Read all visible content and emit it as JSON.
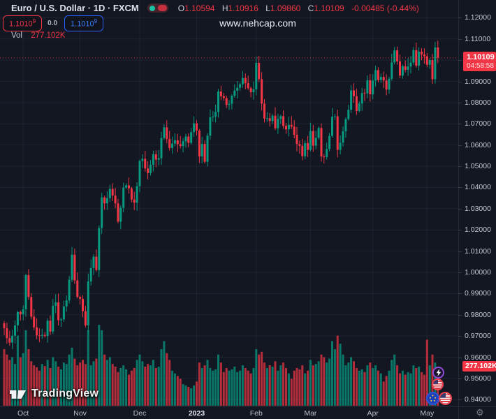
{
  "header": {
    "title": "Euro / U.S. Dollar · 1D · FXCM",
    "ohlc": {
      "o_label": "O",
      "o": "1.10594",
      "h_label": "H",
      "h": "1.10916",
      "l_label": "L",
      "l": "1.09860",
      "c_label": "C",
      "c": "1.10109",
      "change": "-0.00485 (-0.44%)"
    },
    "badges": {
      "bid": {
        "value": "1.1010",
        "sup": "9"
      },
      "spread": "0.0",
      "ask": {
        "value": "1.1010",
        "sup": "9"
      }
    },
    "volume": {
      "label": "Vol",
      "value": "277.102K"
    }
  },
  "watermark": "www.nehcap.com",
  "price_axis": {
    "ticks": [
      "1.12000",
      "1.11000",
      "1.10000",
      "1.09000",
      "1.08000",
      "1.07000",
      "1.06000",
      "1.05000",
      "1.04000",
      "1.03000",
      "1.02000",
      "1.01000",
      "1.00000",
      "0.99000",
      "0.98000",
      "0.97000",
      "0.96000",
      "0.95000",
      "0.94000"
    ],
    "last_price_label": "1.10109",
    "countdown": "04:58:58",
    "volume_badge": "277.102K",
    "gear_icon": "⚙"
  },
  "logo": {
    "text": "TradingView"
  },
  "event_markers": [
    {
      "name": "flash-event-icon"
    },
    {
      "name": "us-flag-event-icon"
    },
    {
      "name": "eu-flag-event-icon"
    },
    {
      "name": "us-flag-event-icon-2"
    }
  ],
  "colors": {
    "background": "#131722",
    "up": "#089981",
    "down": "#f23645",
    "vol_up": "rgba(8,153,129,0.75)",
    "vol_down": "rgba(242,54,69,0.72)",
    "grid": "rgba(163,176,199,0.08)",
    "last_price_line": "#f23645",
    "badge_red": "#f23645",
    "badge_blue": "#2962ff"
  },
  "chart_data": {
    "type": "candlestick+volume",
    "symbol": "Euro / U.S. Dollar",
    "exchange": "FXCM",
    "interval": "1D",
    "ylim": [
      0.94,
      1.12
    ],
    "y_tick_step": 0.01,
    "last_price": 1.10109,
    "last_candle": {
      "o": 1.10594,
      "h": 1.10916,
      "l": 1.0986,
      "c": 1.10109
    },
    "first_open": 0.976,
    "month_ticks": [
      {
        "label": "Oct",
        "index": 7,
        "year": false
      },
      {
        "label": "Nov",
        "index": 28,
        "year": false
      },
      {
        "label": "Dec",
        "index": 50,
        "year": false
      },
      {
        "label": "2023",
        "index": 71,
        "year": true
      },
      {
        "label": "Feb",
        "index": 93,
        "year": false
      },
      {
        "label": "Mar",
        "index": 113,
        "year": false
      },
      {
        "label": "Apr",
        "index": 136,
        "year": false
      },
      {
        "label": "May",
        "index": 156,
        "year": false
      }
    ],
    "closes": [
      0.9737,
      0.969,
      0.9669,
      0.9701,
      0.975,
      0.9813,
      0.9802,
      0.9826,
      0.9987,
      0.9884,
      0.9791,
      0.9741,
      0.9703,
      0.9701,
      0.9705,
      0.97,
      0.9772,
      0.9721,
      0.9842,
      0.9858,
      0.9774,
      0.9778,
      0.9839,
      0.9868,
      0.9965,
      1.0083,
      0.9962,
      0.9884,
      0.9875,
      0.9817,
      0.975,
      0.9957,
      1.002,
      1.0074,
      1.0011,
      1.0209,
      1.0353,
      1.0325,
      1.035,
      1.0393,
      1.0362,
      1.0325,
      1.0239,
      1.0304,
      1.0399,
      1.041,
      1.0396,
      1.0343,
      1.0328,
      1.0406,
      1.0525,
      1.0535,
      1.049,
      1.0468,
      1.0507,
      1.0556,
      1.0531,
      1.0538,
      1.0633,
      1.0683,
      1.0628,
      1.0586,
      1.0607,
      1.0622,
      1.0604,
      1.0595,
      1.0618,
      1.064,
      1.061,
      1.0661,
      1.0702,
      1.0668,
      1.0546,
      1.0605,
      1.0521,
      1.0644,
      1.073,
      1.0734,
      1.0756,
      1.0852,
      1.083,
      1.0821,
      1.0789,
      1.0794,
      1.0832,
      1.0856,
      1.087,
      1.0886,
      1.0916,
      1.0891,
      1.0868,
      1.0849,
      1.0862,
      1.0987,
      1.091,
      1.0795,
      1.0725,
      1.0726,
      1.0713,
      1.0738,
      1.0679,
      1.0723,
      1.0736,
      1.069,
      1.0674,
      1.0695,
      1.0686,
      1.0648,
      1.0605,
      1.0596,
      1.0547,
      1.0609,
      1.0577,
      1.0666,
      1.0597,
      1.0634,
      1.068,
      1.0546,
      1.0543,
      1.0581,
      1.0643,
      1.0733,
      1.0735,
      1.0577,
      1.0611,
      1.0665,
      1.0722,
      1.0766,
      1.0857,
      1.083,
      1.076,
      1.0796,
      1.0845,
      1.0843,
      1.0905,
      1.0839,
      1.0904,
      1.0953,
      1.0906,
      1.0921,
      1.0904,
      1.0861,
      1.0912,
      1.0989,
      1.1046,
      1.0994,
      1.0927,
      1.0971,
      1.0954,
      1.097,
      1.0988,
      1.1047,
      1.0974,
      1.104,
      1.1027,
      1.1018,
      1.0978,
      1.1,
      1.091,
      1.106,
      1.10109
    ],
    "volumes_k": [
      420,
      380,
      340,
      360,
      310,
      520,
      360,
      390,
      560,
      420,
      330,
      300,
      285,
      260,
      310,
      295,
      340,
      280,
      360,
      330,
      290,
      270,
      320,
      310,
      380,
      430,
      350,
      300,
      320,
      340,
      310,
      560,
      300,
      330,
      350,
      600,
      560,
      380,
      340,
      360,
      310,
      290,
      250,
      280,
      300,
      270,
      230,
      260,
      280,
      340,
      380,
      330,
      290,
      310,
      300,
      340,
      280,
      290,
      420,
      480,
      390,
      340,
      260,
      240,
      220,
      200,
      160,
      150,
      140,
      130,
      150,
      180,
      320,
      280,
      300,
      340,
      280,
      260,
      270,
      380,
      320,
      250,
      280,
      260,
      270,
      290,
      250,
      260,
      300,
      280,
      260,
      240,
      280,
      420,
      380,
      400,
      320,
      280,
      300,
      290,
      330,
      260,
      300,
      320,
      280,
      240,
      200,
      260,
      280,
      270,
      300,
      240,
      260,
      340,
      300,
      310,
      330,
      380,
      360,
      320,
      350,
      480,
      420,
      520,
      460,
      380,
      300,
      320,
      360,
      330,
      280,
      260,
      270,
      250,
      300,
      320,
      280,
      300,
      260,
      240,
      180,
      220,
      260,
      340,
      380,
      300,
      240,
      260,
      230,
      250,
      240,
      300,
      280,
      290,
      250,
      230,
      490,
      300,
      380,
      320,
      277.102
    ]
  }
}
